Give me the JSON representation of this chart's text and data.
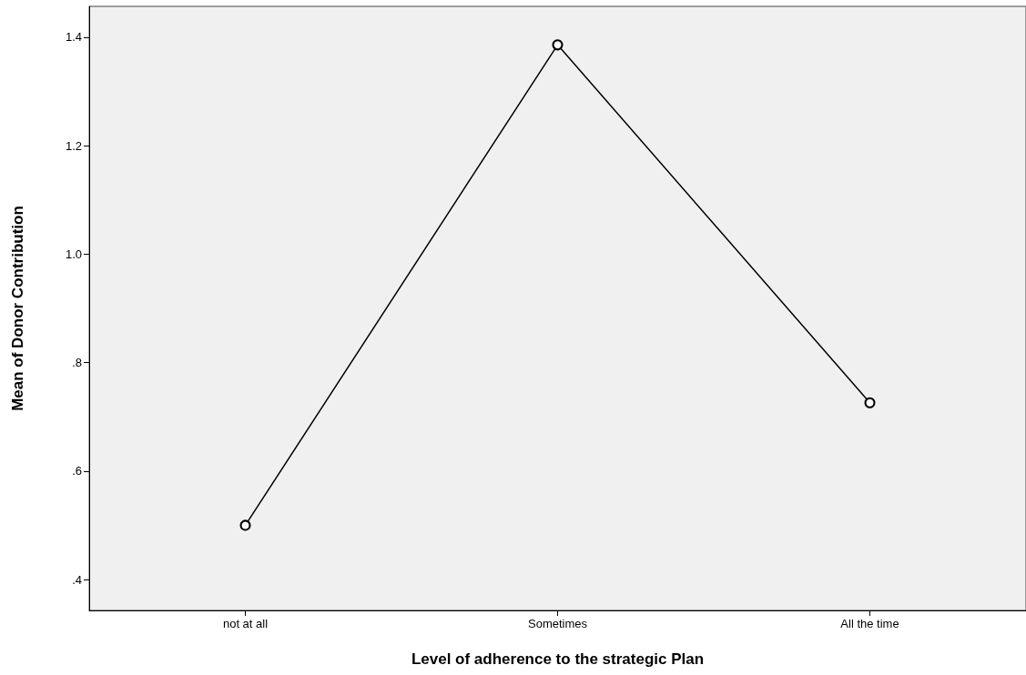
{
  "chart_data": {
    "type": "line",
    "xlabel": "Level of adherence to the strategic Plan",
    "ylabel": "Mean of Donor Contribution",
    "categories": [
      "not at all",
      "Sometimes",
      "All the time"
    ],
    "series": [
      {
        "color": "#000000",
        "values": [
          0.5,
          1.386,
          0.726
        ]
      }
    ],
    "ylim": [
      0.343,
      1.457
    ],
    "yticks": [
      {
        "value": 0.4,
        "label": ".4"
      },
      {
        "value": 0.6,
        "label": ".6"
      },
      {
        "value": 0.8,
        "label": ".8"
      },
      {
        "value": 1.0,
        "label": "1.0"
      },
      {
        "value": 1.2,
        "label": "1.2"
      },
      {
        "value": 1.4,
        "label": "1.4"
      }
    ],
    "grid": false,
    "marker": "circle",
    "line_style": "solid"
  }
}
